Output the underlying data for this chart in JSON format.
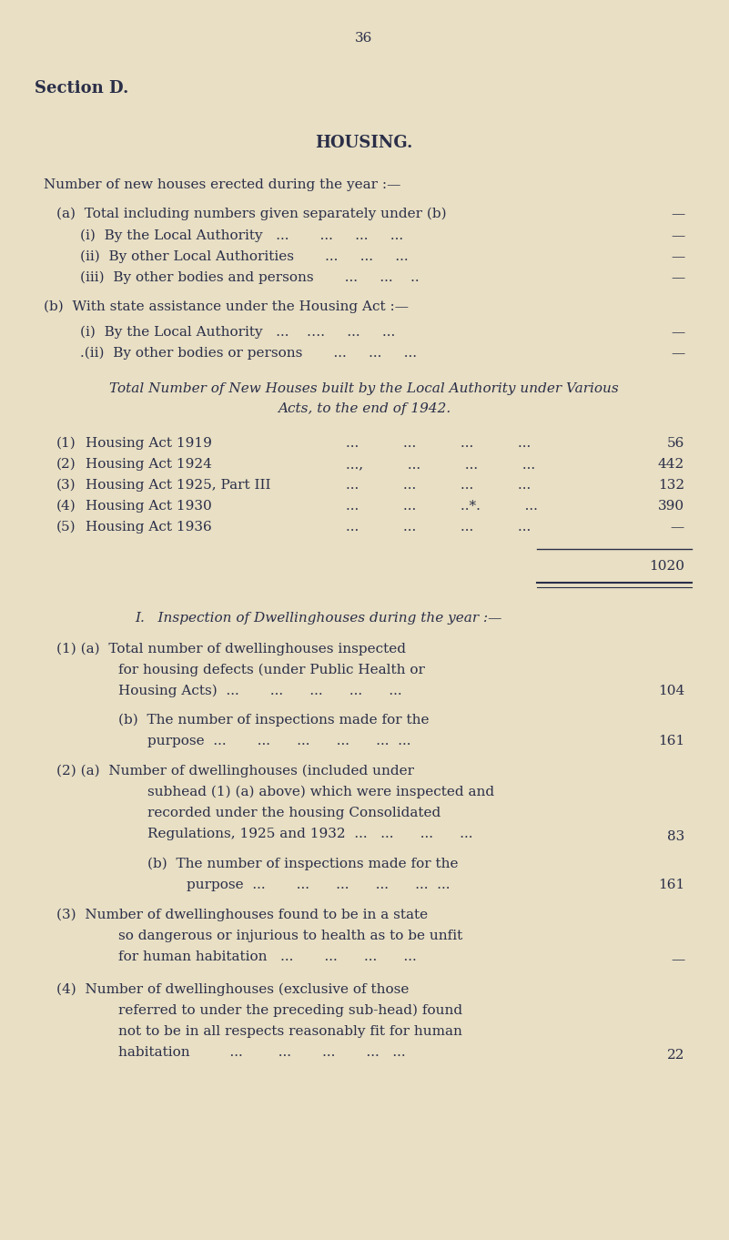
{
  "bg_color": "#e8dfc4",
  "text_color": "#2a2e48",
  "page_number": "36",
  "section_header": "Section D.",
  "title": "HOUSING.",
  "italic_title_line1": "Total Number of New Houses built by the Local Authority under Various",
  "italic_title_line2": "Acts, to the end of 1942.",
  "section_i_title": "I.   Inspection of Dwellinghouses during the year :—",
  "total_value": "1020"
}
